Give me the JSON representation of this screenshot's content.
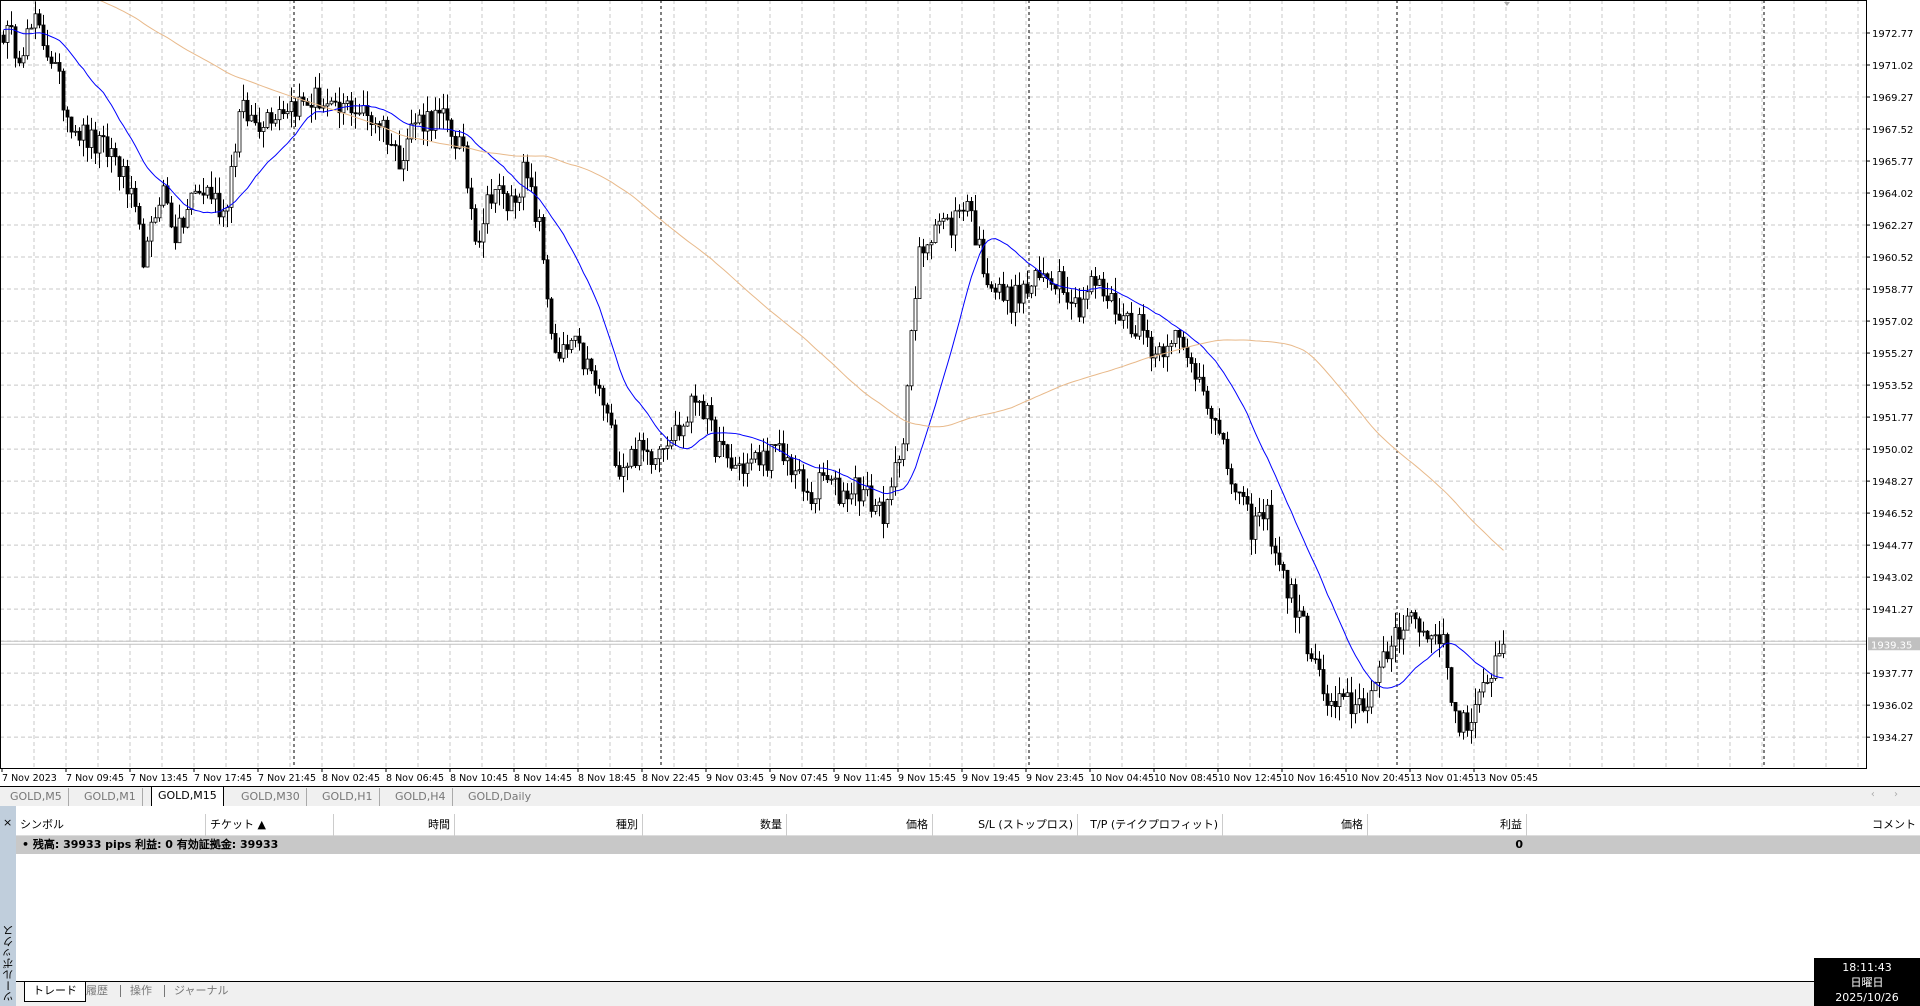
{
  "chart": {
    "symbol": "GOLD",
    "timeframe": "M15",
    "price_ticks": [
      "1972.77",
      "1971.02",
      "1969.27",
      "1967.52",
      "1965.77",
      "1964.02",
      "1962.27",
      "1960.52",
      "1958.77",
      "1957.02",
      "1955.27",
      "1953.52",
      "1951.77",
      "1950.02",
      "1948.27",
      "1946.52",
      "1944.77",
      "1943.02",
      "1941.27",
      "1937.77",
      "1936.02",
      "1934.27"
    ],
    "current_price": "1939.35",
    "time_ticks": [
      "7 Nov 2023",
      "7 Nov 09:45",
      "7 Nov 13:45",
      "7 Nov 17:45",
      "7 Nov 21:45",
      "8 Nov 02:45",
      "8 Nov 06:45",
      "8 Nov 10:45",
      "8 Nov 14:45",
      "8 Nov 18:45",
      "8 Nov 22:45",
      "9 Nov 03:45",
      "9 Nov 07:45",
      "9 Nov 11:45",
      "9 Nov 15:45",
      "9 Nov 19:45",
      "9 Nov 23:45",
      "10 Nov 04:45",
      "10 Nov 08:45",
      "10 Nov 12:45",
      "10 Nov 16:45",
      "10 Nov 20:45",
      "13 Nov 01:45",
      "13 Nov 05:45"
    ],
    "colors": {
      "fast_ma": "#0000ff",
      "slow_ma": "#e8b98a",
      "bull": "#ffffff",
      "bear": "#000000",
      "grid": "#c8c8c8",
      "current_line": "#c0c0c0"
    },
    "hourly_closes": [
      1972.9,
      1971.9,
      1973.2,
      1971.6,
      1968.5,
      1967.2,
      1966.5,
      1966.2,
      1963.9,
      1960.2,
      1964.5,
      1961.5,
      1963.9,
      1964.2,
      1962.9,
      1968.5,
      1967.9,
      1968.5,
      1968.9,
      1968.9,
      1969.2,
      1968.2,
      1968.9,
      1968.2,
      1967.9,
      1965.9,
      1967.9,
      1968.2,
      1967.9,
      1966.5,
      1961.5,
      1964.5,
      1963.2,
      1965.2,
      1961.9,
      1954.5,
      1955.8,
      1954.5,
      1952.5,
      1949.1,
      1949.8,
      1949.8,
      1950.8,
      1951.1,
      1953.2,
      1950.5,
      1949.1,
      1949.1,
      1949.5,
      1949.8,
      1949.1,
      1947.1,
      1948.5,
      1947.5,
      1948.1,
      1947.1,
      1946.5,
      1951.1,
      1960.5,
      1962.5,
      1962.2,
      1963.9,
      1960.2,
      1958.5,
      1958.2,
      1958.8,
      1959.5,
      1959.5,
      1957.8,
      1959.2,
      1958.2,
      1957.2,
      1956.8,
      1955.2,
      1956.5,
      1954.8,
      1953.8,
      1950.5,
      1947.8,
      1945.8,
      1946.5,
      1943.1,
      1941.1,
      1938.4,
      1935.7,
      1936.1,
      1936.1,
      1937.1,
      1939.8,
      1941.1,
      1939.8,
      1940.1,
      1935.4,
      1934.7,
      1937.7,
      1939.35
    ]
  },
  "timeframe_tabs": [
    "GOLD,M5",
    "GOLD,M1",
    "GOLD,M15",
    "GOLD,M30",
    "GOLD,H1",
    "GOLD,H4",
    "GOLD,Daily"
  ],
  "active_tab": "GOLD,M15",
  "terminal": {
    "close": "×",
    "title": "ツールボックス",
    "columns": [
      "シンボル",
      "チケット ▲",
      "時間",
      "種別",
      "数量",
      "価格",
      "S/L (ストップロス)",
      "T/P (テイクプロフィット)",
      "価格",
      "利益",
      "コメント"
    ],
    "summary": "•  残高: 39933 pips   利益: 0   有効証拠金: 39933",
    "profit_total": "0",
    "tabs": [
      "トレード",
      "履歴",
      "操作",
      "ジャーナル"
    ]
  },
  "clock": {
    "time": "18:11:43",
    "weekday": "日曜日",
    "date": "2025/10/26"
  }
}
